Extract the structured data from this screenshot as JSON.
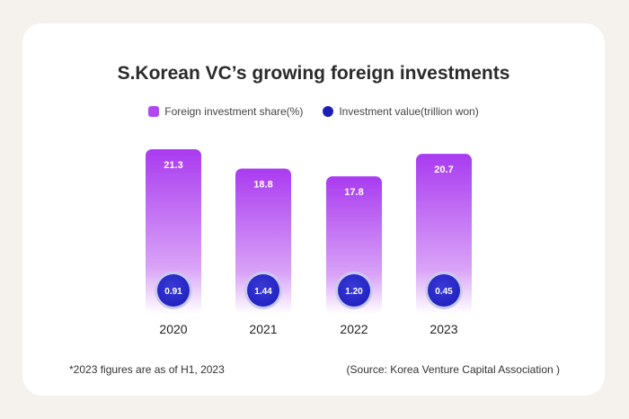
{
  "chart_data": {
    "type": "bar",
    "title": "S.Korean VC’s growing foreign investments",
    "categories": [
      "2020",
      "2021",
      "2022",
      "2023"
    ],
    "series": [
      {
        "name": "Foreign investment share(%)",
        "values": [
          21.3,
          18.8,
          17.8,
          20.7
        ],
        "labels": [
          "21.3",
          "18.8",
          "17.8",
          "20.7"
        ]
      },
      {
        "name": "Investment value(trillion won)",
        "values": [
          0.91,
          1.44,
          1.2,
          0.45
        ],
        "labels": [
          "0.91",
          "1.44",
          "1.20",
          "0.45"
        ]
      }
    ],
    "ylim": [
      0,
      21.3
    ],
    "xlabel": "",
    "ylabel": "",
    "grid": false,
    "legend_position": "top-center",
    "colors": {
      "bar_top": "#a93bf0",
      "bar_bottom": "#ffffff",
      "circle": "#2020c0",
      "circle_ring": "#c9c9ef"
    }
  },
  "footnote": "*2023 figures are as of H1, 2023",
  "source": "(Source: Korea Venture Capital Association )"
}
